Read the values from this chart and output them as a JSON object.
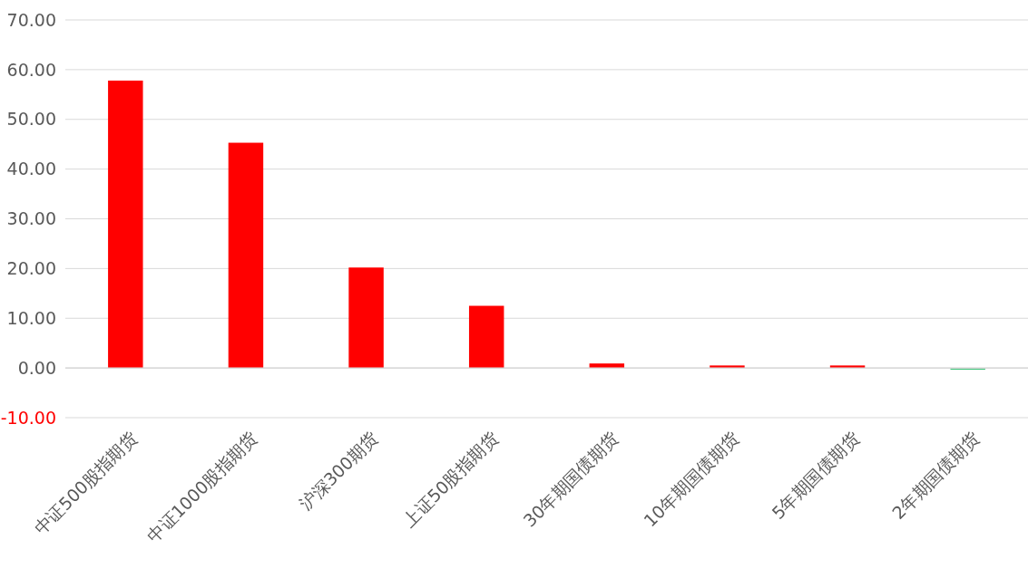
{
  "chart_data": {
    "type": "bar",
    "categories": [
      "中证500股指期货",
      "中证1000股指期货",
      "沪深300期货",
      "上证50股指期货",
      "30年期国债期货",
      "10年期国债期货",
      "5年期国债期货",
      "2年期国债期货"
    ],
    "values": [
      57.8,
      45.3,
      20.2,
      12.5,
      0.9,
      0.5,
      0.5,
      -0.3
    ],
    "colors": [
      "#ff0000",
      "#ff0000",
      "#ff0000",
      "#ff0000",
      "#ff0000",
      "#ff0000",
      "#ff0000",
      "#00b050"
    ],
    "ylim": [
      -10,
      70
    ],
    "yticks": [
      {
        "value": -10,
        "label": "-10.00"
      },
      {
        "value": 0,
        "label": "0.00"
      },
      {
        "value": 10,
        "label": "10.00"
      },
      {
        "value": 20,
        "label": "20.00"
      },
      {
        "value": 30,
        "label": "30.00"
      },
      {
        "value": 40,
        "label": "40.00"
      },
      {
        "value": 50,
        "label": "50.00"
      },
      {
        "value": 60,
        "label": "60.00"
      },
      {
        "value": 70,
        "label": "70.00"
      }
    ],
    "grid": "y"
  }
}
